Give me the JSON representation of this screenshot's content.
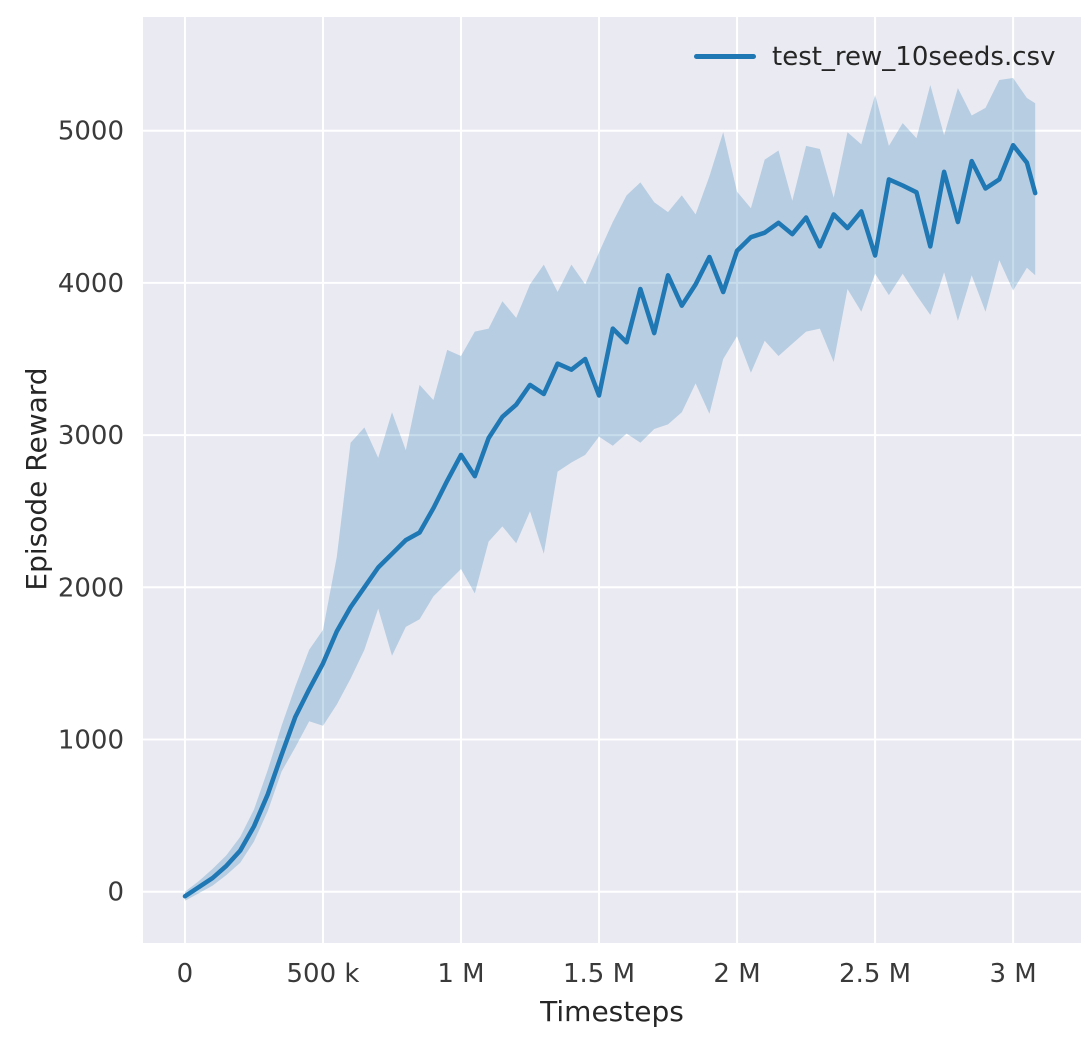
{
  "figure": {
    "background": "#ffffff",
    "plot_bg": "#eaeaf2",
    "grid_color": "#ffffff",
    "tick_color": "#3a3a3a",
    "label_color": "#262626"
  },
  "chart_data": {
    "type": "line",
    "title": "",
    "xlabel": "Timesteps",
    "ylabel": "Episode Reward",
    "grid": true,
    "legend_position": "upper right",
    "xlim": [
      -152000,
      3246000
    ],
    "ylim": [
      -337,
      5747
    ],
    "x_ticks": [
      {
        "value": 0,
        "label": "0"
      },
      {
        "value": 500000,
        "label": "500 k"
      },
      {
        "value": 1000000,
        "label": "1 M"
      },
      {
        "value": 1500000,
        "label": "1.5 M"
      },
      {
        "value": 2000000,
        "label": "2 M"
      },
      {
        "value": 2500000,
        "label": "2.5 M"
      },
      {
        "value": 3000000,
        "label": "3 M"
      }
    ],
    "y_ticks": [
      {
        "value": 0,
        "label": "0"
      },
      {
        "value": 1000,
        "label": "1000"
      },
      {
        "value": 2000,
        "label": "2000"
      },
      {
        "value": 3000,
        "label": "3000"
      },
      {
        "value": 4000,
        "label": "4000"
      },
      {
        "value": 5000,
        "label": "5000"
      }
    ],
    "series": [
      {
        "name": "test_rew_10seeds.csv",
        "color": "#1f77b4",
        "band_opacity": 0.25,
        "x": [
          0,
          50000,
          100000,
          150000,
          200000,
          250000,
          300000,
          350000,
          400000,
          450000,
          500000,
          550000,
          600000,
          650000,
          700000,
          750000,
          800000,
          850000,
          900000,
          950000,
          1000000,
          1050000,
          1100000,
          1150000,
          1200000,
          1250000,
          1300000,
          1350000,
          1400000,
          1450000,
          1500000,
          1550000,
          1600000,
          1650000,
          1700000,
          1750000,
          1800000,
          1850000,
          1900000,
          1950000,
          2000000,
          2050000,
          2100000,
          2150000,
          2200000,
          2250000,
          2300000,
          2350000,
          2400000,
          2450000,
          2500000,
          2550000,
          2600000,
          2650000,
          2700000,
          2750000,
          2800000,
          2850000,
          2900000,
          2950000,
          3000000,
          3050000,
          3080000
        ],
        "mean": [
          -30,
          30,
          90,
          170,
          270,
          430,
          640,
          900,
          1150,
          1330,
          1500,
          1710,
          1870,
          2000,
          2130,
          2220,
          2310,
          2360,
          2520,
          2700,
          2870,
          2730,
          2980,
          3120,
          3200,
          3330,
          3270,
          3470,
          3430,
          3500,
          3260,
          3700,
          3610,
          3960,
          3670,
          4050,
          3850,
          3990,
          4170,
          3940,
          4210,
          4300,
          4330,
          4395,
          4320,
          4430,
          4240,
          4450,
          4360,
          4470,
          4180,
          4680,
          4640,
          4595,
          4240,
          4730,
          4400,
          4800,
          4620,
          4680,
          4905,
          4790,
          4590
        ],
        "band_lower": [
          -60,
          -10,
          40,
          110,
          190,
          330,
          530,
          790,
          950,
          1120,
          1090,
          1230,
          1400,
          1590,
          1860,
          1550,
          1740,
          1790,
          1940,
          2030,
          2120,
          1960,
          2300,
          2400,
          2290,
          2500,
          2220,
          2760,
          2820,
          2870,
          2990,
          2930,
          3010,
          2950,
          3040,
          3070,
          3150,
          3340,
          3140,
          3500,
          3650,
          3410,
          3620,
          3520,
          3600,
          3680,
          3700,
          3480,
          3960,
          3810,
          4060,
          3920,
          4060,
          3920,
          3790,
          4070,
          3750,
          4050,
          3810,
          4150,
          3950,
          4100,
          4050
        ],
        "band_upper": [
          0,
          70,
          150,
          240,
          360,
          540,
          800,
          1090,
          1350,
          1590,
          1720,
          2200,
          2950,
          3050,
          2850,
          3150,
          2900,
          3330,
          3230,
          3560,
          3520,
          3680,
          3700,
          3880,
          3770,
          3990,
          4120,
          3940,
          4120,
          3990,
          4200,
          4400,
          4575,
          4660,
          4530,
          4465,
          4575,
          4450,
          4700,
          4990,
          4600,
          4490,
          4810,
          4870,
          4540,
          4900,
          4880,
          4560,
          4990,
          4910,
          5235,
          4900,
          5050,
          4950,
          5300,
          4970,
          5280,
          5100,
          5150,
          5333,
          5346,
          5215,
          5180
        ]
      }
    ]
  }
}
